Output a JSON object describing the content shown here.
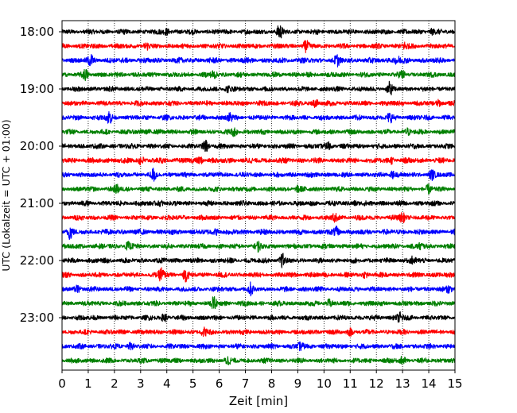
{
  "chart_data": {
    "type": "line",
    "chart_kind": "helicorder",
    "title": "",
    "xlabel": "Zeit  [min]",
    "ylabel": "UTC (Lokalzeit = UTC + 01:00)",
    "xlim": [
      0,
      15
    ],
    "x_ticks": [
      0,
      1,
      2,
      3,
      4,
      5,
      6,
      7,
      8,
      9,
      10,
      11,
      12,
      13,
      14,
      15
    ],
    "x_tick_labels": [
      "0",
      "1",
      "2",
      "3",
      "4",
      "5",
      "6",
      "7",
      "8",
      "9",
      "10",
      "11",
      "12",
      "13",
      "14",
      "15"
    ],
    "y_tick_labels": [
      "18:00",
      "19:00",
      "20:00",
      "21:00",
      "22:00",
      "23:00"
    ],
    "grid": "vertical-dotted",
    "legend": "none",
    "colors": [
      "#000000",
      "#ff0000",
      "#0000ff",
      "#007f00"
    ],
    "traces": [
      {
        "start": "18:00",
        "color": "#000000",
        "amplitude": 0.12,
        "events": [
          {
            "x": 4.0,
            "amp": 0.22
          },
          {
            "x": 8.3,
            "amp": 0.28
          },
          {
            "x": 14.1,
            "amp": 0.18
          }
        ]
      },
      {
        "start": "18:15",
        "color": "#ff0000",
        "amplitude": 0.12,
        "events": [
          {
            "x": 3.2,
            "amp": 0.18
          },
          {
            "x": 9.3,
            "amp": 0.22
          },
          {
            "x": 13.1,
            "amp": 0.2
          }
        ]
      },
      {
        "start": "18:30",
        "color": "#0000ff",
        "amplitude": 0.13,
        "events": [
          {
            "x": 1.1,
            "amp": 0.2
          },
          {
            "x": 10.5,
            "amp": 0.18
          },
          {
            "x": 12.8,
            "amp": 0.24
          }
        ]
      },
      {
        "start": "18:45",
        "color": "#007f00",
        "amplitude": 0.12,
        "events": [
          {
            "x": 0.9,
            "amp": 0.18
          },
          {
            "x": 5.8,
            "amp": 0.2
          },
          {
            "x": 13.0,
            "amp": 0.16
          }
        ]
      },
      {
        "start": "19:00",
        "color": "#000000",
        "amplitude": 0.12,
        "events": [
          {
            "x": 6.3,
            "amp": 0.2
          },
          {
            "x": 12.5,
            "amp": 0.26
          }
        ]
      },
      {
        "start": "19:15",
        "color": "#ff0000",
        "amplitude": 0.12,
        "events": [
          {
            "x": 9.7,
            "amp": 0.24
          },
          {
            "x": 14.4,
            "amp": 0.16
          }
        ]
      },
      {
        "start": "19:30",
        "color": "#0000ff",
        "amplitude": 0.12,
        "events": [
          {
            "x": 1.8,
            "amp": 0.3
          },
          {
            "x": 6.4,
            "amp": 0.2
          },
          {
            "x": 12.5,
            "amp": 0.18
          }
        ]
      },
      {
        "start": "19:45",
        "color": "#007f00",
        "amplitude": 0.12,
        "events": [
          {
            "x": 3.3,
            "amp": 0.18
          },
          {
            "x": 6.6,
            "amp": 0.26
          },
          {
            "x": 13.2,
            "amp": 0.18
          }
        ]
      },
      {
        "start": "20:00",
        "color": "#000000",
        "amplitude": 0.12,
        "events": [
          {
            "x": 5.5,
            "amp": 0.34
          },
          {
            "x": 10.2,
            "amp": 0.2
          }
        ]
      },
      {
        "start": "20:15",
        "color": "#ff0000",
        "amplitude": 0.13,
        "events": [
          {
            "x": 3.0,
            "amp": 0.26
          },
          {
            "x": 5.3,
            "amp": 0.2
          },
          {
            "x": 12.6,
            "amp": 0.16
          }
        ]
      },
      {
        "start": "20:30",
        "color": "#0000ff",
        "amplitude": 0.12,
        "events": [
          {
            "x": 3.5,
            "amp": 0.2
          },
          {
            "x": 12.6,
            "amp": 0.26
          },
          {
            "x": 14.1,
            "amp": 0.18
          }
        ]
      },
      {
        "start": "20:45",
        "color": "#007f00",
        "amplitude": 0.12,
        "events": [
          {
            "x": 2.1,
            "amp": 0.18
          },
          {
            "x": 9.0,
            "amp": 0.2
          },
          {
            "x": 14.0,
            "amp": 0.16
          }
        ]
      },
      {
        "start": "21:00",
        "color": "#000000",
        "amplitude": 0.12,
        "events": [
          {
            "x": 3.8,
            "amp": 0.2
          },
          {
            "x": 11.2,
            "amp": 0.18
          }
        ]
      },
      {
        "start": "21:15",
        "color": "#ff0000",
        "amplitude": 0.12,
        "events": [
          {
            "x": 10.4,
            "amp": 0.18
          },
          {
            "x": 13.0,
            "amp": 0.3
          }
        ]
      },
      {
        "start": "21:30",
        "color": "#0000ff",
        "amplitude": 0.13,
        "events": [
          {
            "x": 0.3,
            "amp": 0.26
          },
          {
            "x": 5.9,
            "amp": 0.2
          },
          {
            "x": 10.5,
            "amp": 0.2
          }
        ]
      },
      {
        "start": "21:45",
        "color": "#007f00",
        "amplitude": 0.12,
        "events": [
          {
            "x": 2.5,
            "amp": 0.2
          },
          {
            "x": 7.5,
            "amp": 0.18
          },
          {
            "x": 13.7,
            "amp": 0.16
          }
        ]
      },
      {
        "start": "22:00",
        "color": "#000000",
        "amplitude": 0.12,
        "events": [
          {
            "x": 8.4,
            "amp": 0.28
          },
          {
            "x": 13.4,
            "amp": 0.2
          }
        ]
      },
      {
        "start": "22:15",
        "color": "#ff0000",
        "amplitude": 0.12,
        "events": [
          {
            "x": 3.8,
            "amp": 0.4
          },
          {
            "x": 4.7,
            "amp": 0.26
          },
          {
            "x": 11.6,
            "amp": 0.16
          }
        ]
      },
      {
        "start": "22:30",
        "color": "#0000ff",
        "amplitude": 0.12,
        "events": [
          {
            "x": 0.6,
            "amp": 0.18
          },
          {
            "x": 7.2,
            "amp": 0.2
          },
          {
            "x": 14.8,
            "amp": 0.22
          }
        ]
      },
      {
        "start": "22:45",
        "color": "#007f00",
        "amplitude": 0.12,
        "events": [
          {
            "x": 5.8,
            "amp": 0.3
          },
          {
            "x": 10.2,
            "amp": 0.18
          }
        ]
      },
      {
        "start": "23:00",
        "color": "#000000",
        "amplitude": 0.12,
        "events": [
          {
            "x": 3.9,
            "amp": 0.2
          },
          {
            "x": 12.9,
            "amp": 0.24
          }
        ]
      },
      {
        "start": "23:15",
        "color": "#ff0000",
        "amplitude": 0.12,
        "events": [
          {
            "x": 5.4,
            "amp": 0.24
          },
          {
            "x": 11.0,
            "amp": 0.16
          }
        ]
      },
      {
        "start": "23:30",
        "color": "#0000ff",
        "amplitude": 0.12,
        "events": [
          {
            "x": 2.6,
            "amp": 0.16
          },
          {
            "x": 9.1,
            "amp": 0.18
          }
        ]
      },
      {
        "start": "23:45",
        "color": "#007f00",
        "amplitude": 0.12,
        "events": [
          {
            "x": 6.3,
            "amp": 0.18
          },
          {
            "x": 13.0,
            "amp": 0.2
          }
        ]
      }
    ]
  }
}
